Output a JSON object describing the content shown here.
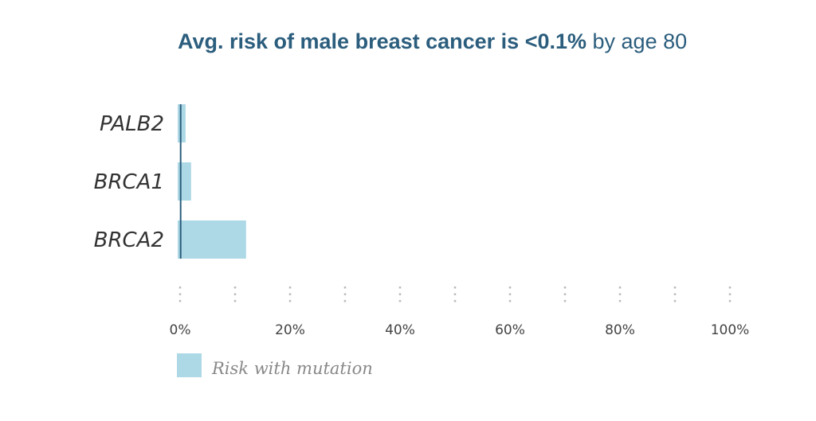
{
  "title": {
    "bold_part": "Avg. risk of male breast cancer is <0.1%",
    "normal_part": " by age 80"
  },
  "chart_data": {
    "type": "bar",
    "orientation": "horizontal",
    "categories": [
      "PALB2",
      "BRCA1",
      "BRCA2"
    ],
    "series": [
      {
        "name": "Risk with mutation",
        "values": [
          1,
          2,
          12
        ],
        "color": "#add8e6"
      }
    ],
    "baseline_value": 0.1,
    "baseline_color": "#2b5d7d",
    "xlim": [
      0,
      100
    ],
    "x_ticks": [
      "0%",
      "20%",
      "40%",
      "60%",
      "80%",
      "100%"
    ],
    "x_tick_values": [
      0,
      20,
      40,
      60,
      80,
      100
    ],
    "x_grid_values": [
      0,
      10,
      20,
      30,
      40,
      50,
      60,
      70,
      80,
      90,
      100
    ],
    "grid": "dotted",
    "grid_color": "#bbbbbb",
    "legend_position": "bottom-left"
  }
}
